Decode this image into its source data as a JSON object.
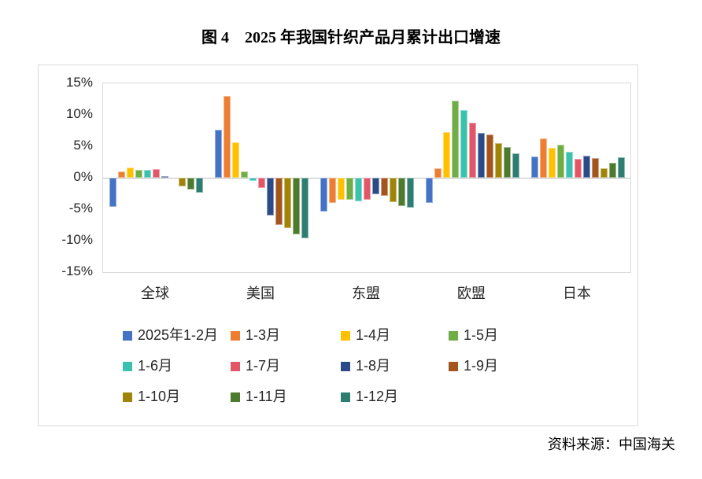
{
  "title": "图 4　2025 年我国针织产品月累计出口增速",
  "source": "资料来源：中国海关",
  "chart_data": {
    "type": "bar",
    "title": "图 4　2025 年我国针织产品月累计出口增速",
    "categories": [
      "全球",
      "美国",
      "东盟",
      "欧盟",
      "日本"
    ],
    "series": [
      {
        "name": "2025年1-2月",
        "color": "#4472C4",
        "values": [
          -4.6,
          7.6,
          -5.4,
          -4.0,
          3.4
        ]
      },
      {
        "name": "1-3月",
        "color": "#ED7D31",
        "values": [
          1.0,
          13.0,
          -4.0,
          1.5,
          6.2
        ]
      },
      {
        "name": "1-4月",
        "color": "#FFC000",
        "values": [
          1.6,
          5.6,
          -3.5,
          7.3,
          4.8
        ]
      },
      {
        "name": "1-5月",
        "color": "#70AD47",
        "values": [
          1.3,
          1.0,
          -3.5,
          12.3,
          5.3
        ]
      },
      {
        "name": "1-6月",
        "color": "#3BC2AE",
        "values": [
          1.2,
          -0.5,
          -3.7,
          10.7,
          4.1
        ]
      },
      {
        "name": "1-7月",
        "color": "#E25768",
        "values": [
          1.4,
          -1.6,
          -3.5,
          8.8,
          3.0
        ]
      },
      {
        "name": "1-8月",
        "color": "#2A4B87",
        "values": [
          0.3,
          -6.0,
          -2.6,
          7.1,
          3.5
        ]
      },
      {
        "name": "1-9月",
        "color": "#A4551E",
        "values": [
          0.0,
          -7.5,
          -2.9,
          6.9,
          3.1
        ]
      },
      {
        "name": "1-10月",
        "color": "#A08408",
        "values": [
          -1.4,
          -8.0,
          -3.9,
          5.5,
          1.5
        ]
      },
      {
        "name": "1-11月",
        "color": "#4E7A2E",
        "values": [
          -1.9,
          -9.0,
          -4.5,
          4.9,
          2.4
        ]
      },
      {
        "name": "1-12月",
        "color": "#2E7D71",
        "values": [
          -2.4,
          -9.6,
          -4.7,
          3.9,
          3.2
        ]
      }
    ],
    "ylim": [
      -15,
      15
    ],
    "ytick_step": 5,
    "ytick_labels": [
      "15%",
      "10%",
      "5%",
      "0%",
      "-5%",
      "-10%",
      "-15%"
    ],
    "grid": false,
    "legend_position": "bottom",
    "legend_rows": [
      [
        0,
        1,
        2,
        3
      ],
      [
        4,
        5,
        6,
        7
      ],
      [
        8,
        9,
        10
      ]
    ]
  }
}
